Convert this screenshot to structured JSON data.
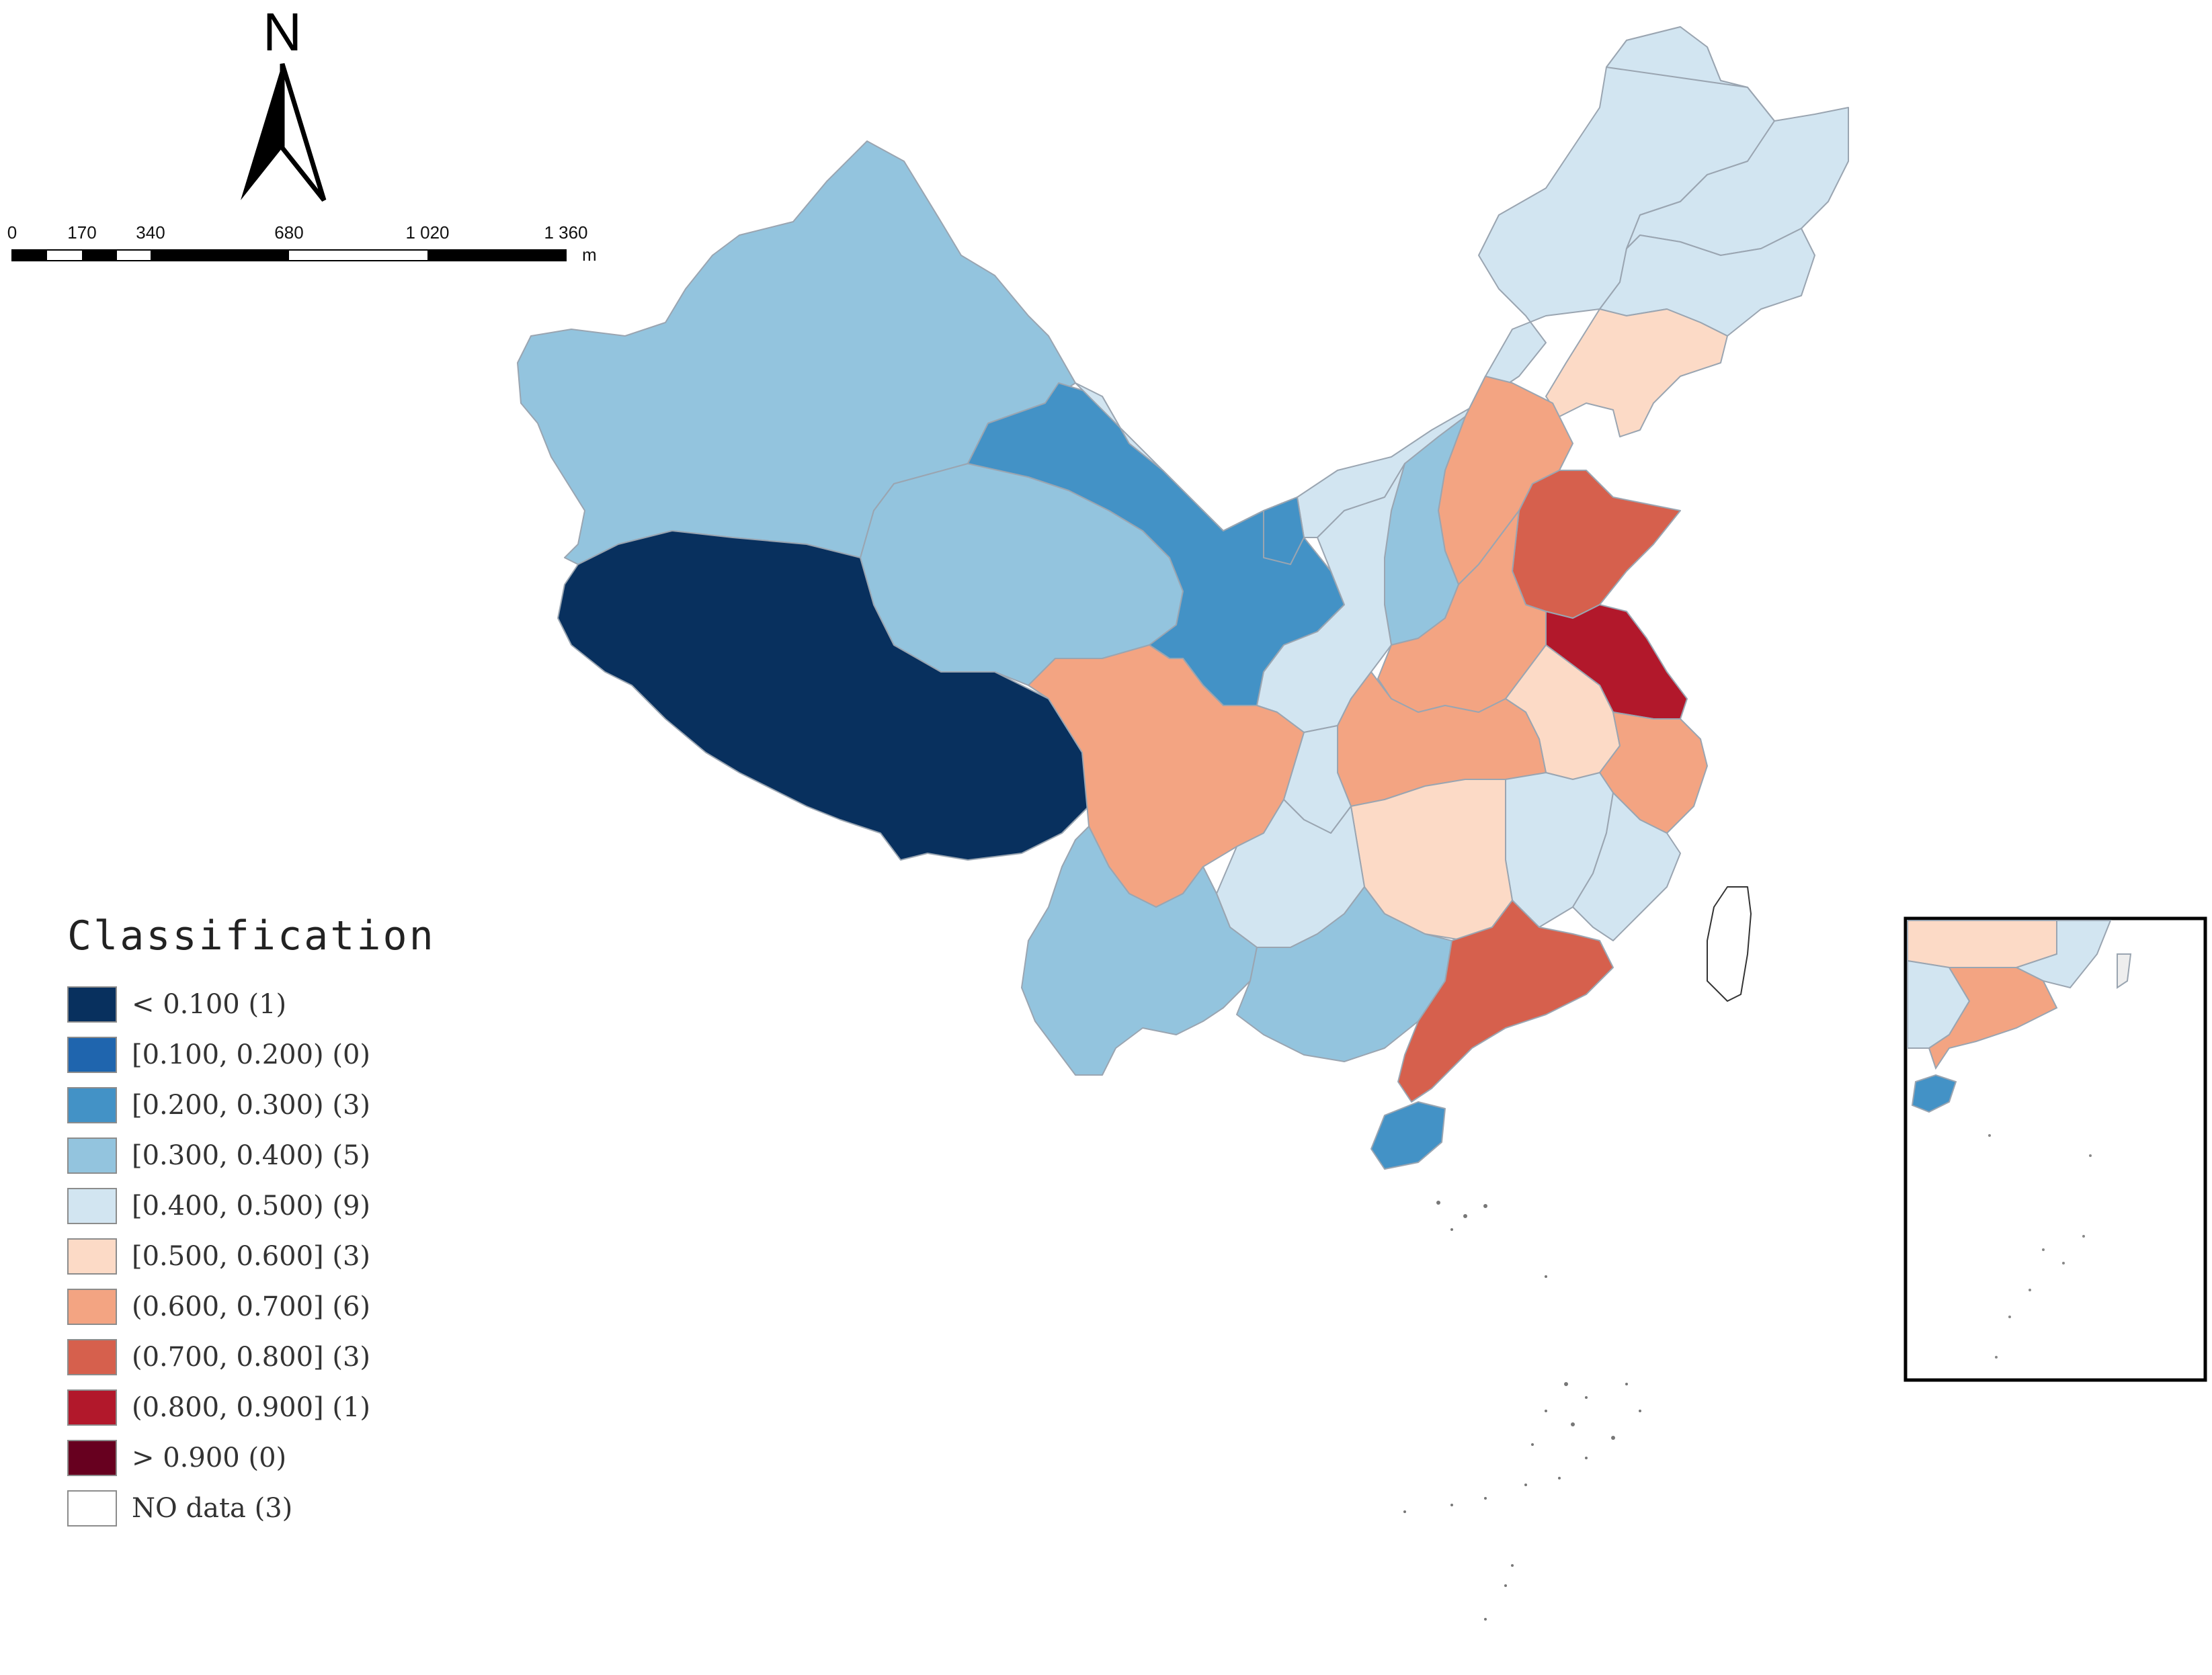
{
  "north_arrow": {
    "label": "N"
  },
  "scale_bar": {
    "ticks": [
      "0",
      "170",
      "340",
      "680",
      "1 020",
      "1 360"
    ],
    "unit": "m"
  },
  "legend": {
    "title": "Classification",
    "items": [
      {
        "label": "< 0.100 (1)",
        "color": "#08305e"
      },
      {
        "label": "[0.100, 0.200) (0)",
        "color": "#1f65ae"
      },
      {
        "label": "[0.200, 0.300) (3)",
        "color": "#4392c6"
      },
      {
        "label": "[0.300, 0.400) (5)",
        "color": "#93c4de"
      },
      {
        "label": "[0.400, 0.500) (9)",
        "color": "#d2e5f1"
      },
      {
        "label": "[0.500, 0.600] (3)",
        "color": "#fcdac6"
      },
      {
        "label": "(0.600, 0.700] (6)",
        "color": "#f3a482"
      },
      {
        "label": "(0.700, 0.800] (3)",
        "color": "#d6604d"
      },
      {
        "label": "(0.800, 0.900] (1)",
        "color": "#b2182b"
      },
      {
        "label": "> 0.900 (0)",
        "color": "#67001f"
      },
      {
        "label": "NO data (3)",
        "color": "#ffffff"
      }
    ]
  }
}
